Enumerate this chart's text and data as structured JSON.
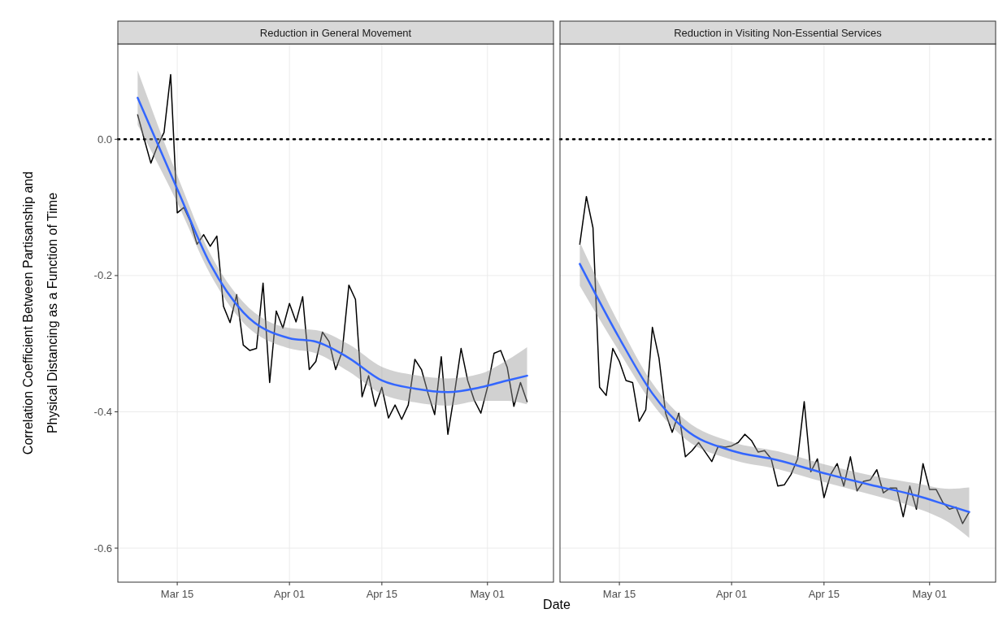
{
  "chart_data": [
    {
      "type": "line",
      "title": "Reduction in General Movement",
      "xlabel": "Date",
      "ylabel": "Correlation Coefficient Between Partisanship and\nPhysical Distancing as a Function of Time",
      "x": [
        "--03-09",
        "--03-10",
        "--03-11",
        "--03-12",
        "--03-13",
        "--03-14",
        "--03-15",
        "--03-16",
        "--03-17",
        "--03-18",
        "--03-19",
        "--03-20",
        "--03-21",
        "--03-22",
        "--03-23",
        "--03-24",
        "--03-25",
        "--03-26",
        "--03-27",
        "--03-28",
        "--03-29",
        "--03-30",
        "--03-31",
        "--04-01",
        "--04-02",
        "--04-03",
        "--04-04",
        "--04-05",
        "--04-06",
        "--04-07",
        "--04-08",
        "--04-09",
        "--04-10",
        "--04-11",
        "--04-12",
        "--04-13",
        "--04-14",
        "--04-15",
        "--04-16",
        "--04-17",
        "--04-18",
        "--04-19",
        "--04-20",
        "--04-21",
        "--04-22",
        "--04-23",
        "--04-24",
        "--04-25",
        "--04-26",
        "--04-27",
        "--04-28",
        "--04-29",
        "--04-30",
        "--05-01",
        "--05-02",
        "--05-03",
        "--05-04",
        "--05-05",
        "--05-06",
        "--05-07"
      ],
      "series": [
        {
          "color": "#000000",
          "values": [
            0.036,
            0.0,
            -0.035,
            -0.01,
            0.01,
            0.095,
            -0.108,
            -0.1,
            -0.121,
            -0.154,
            -0.14,
            -0.157,
            -0.142,
            -0.245,
            -0.269,
            -0.228,
            -0.302,
            -0.31,
            -0.307,
            -0.211,
            -0.357,
            -0.252,
            -0.277,
            -0.241,
            -0.268,
            -0.231,
            -0.338,
            -0.326,
            -0.283,
            -0.297,
            -0.338,
            -0.311,
            -0.214,
            -0.235,
            -0.378,
            -0.347,
            -0.392,
            -0.364,
            -0.409,
            -0.39,
            -0.411,
            -0.39,
            -0.323,
            -0.338,
            -0.373,
            -0.404,
            -0.319,
            -0.433,
            -0.373,
            -0.307,
            -0.354,
            -0.383,
            -0.402,
            -0.364,
            -0.314,
            -0.31,
            -0.335,
            -0.392,
            -0.357,
            -0.385
          ]
        },
        {
          "color": "#3366ff",
          "x": [
            "--03-09",
            "--03-15",
            "--03-20",
            "--03-25",
            "--04-01",
            "--04-05",
            "--04-10",
            "--04-15",
            "--04-20",
            "--04-25",
            "--04-30",
            "--05-04",
            "--05-07"
          ],
          "values": [
            0.061,
            -0.073,
            -0.183,
            -0.254,
            -0.292,
            -0.297,
            -0.321,
            -0.354,
            -0.366,
            -0.371,
            -0.364,
            -0.354,
            -0.347
          ],
          "lower": [
            0.021,
            -0.093,
            -0.198,
            -0.269,
            -0.307,
            -0.314,
            -0.341,
            -0.374,
            -0.386,
            -0.391,
            -0.384,
            -0.384,
            -0.389
          ],
          "upper": [
            0.101,
            -0.053,
            -0.168,
            -0.239,
            -0.277,
            -0.28,
            -0.301,
            -0.334,
            -0.346,
            -0.351,
            -0.344,
            -0.324,
            -0.305
          ]
        }
      ],
      "xlim": [
        "--03-06",
        "--05-11"
      ],
      "ylim": [
        -0.65,
        0.14
      ],
      "xticks": [
        {
          "value": "--03-15",
          "label": "Mar 15"
        },
        {
          "value": "--04-01",
          "label": "Apr 01"
        },
        {
          "value": "--04-15",
          "label": "Apr 15"
        },
        {
          "value": "--05-01",
          "label": "May 01"
        }
      ],
      "yticks": [
        {
          "value": 0,
          "label": "0.0"
        },
        -0.2,
        -0.4,
        -0.6
      ],
      "grid": true,
      "ref_lines": [
        {
          "axis": "y",
          "value": 0,
          "color": "#000000",
          "line_style": "dotted"
        }
      ]
    },
    {
      "type": "line",
      "title": "Reduction in Visiting Non-Essential Services",
      "x": [
        "--03-09",
        "--03-10",
        "--03-11",
        "--03-12",
        "--03-13",
        "--03-14",
        "--03-15",
        "--03-16",
        "--03-17",
        "--03-18",
        "--03-19",
        "--03-20",
        "--03-21",
        "--03-22",
        "--03-23",
        "--03-24",
        "--03-25",
        "--03-26",
        "--03-27",
        "--03-28",
        "--03-29",
        "--03-30",
        "--03-31",
        "--04-01",
        "--04-02",
        "--04-03",
        "--04-04",
        "--04-05",
        "--04-06",
        "--04-07",
        "--04-08",
        "--04-09",
        "--04-10",
        "--04-11",
        "--04-12",
        "--04-13",
        "--04-14",
        "--04-15",
        "--04-16",
        "--04-17",
        "--04-18",
        "--04-19",
        "--04-20",
        "--04-21",
        "--04-22",
        "--04-23",
        "--04-24",
        "--04-25",
        "--04-26",
        "--04-27",
        "--04-28",
        "--04-29",
        "--04-30",
        "--05-01",
        "--05-02",
        "--05-03",
        "--05-04",
        "--05-05",
        "--05-06",
        "--05-07"
      ],
      "series": [
        {
          "color": "#000000",
          "values": [
            -0.154,
            -0.084,
            -0.13,
            -0.364,
            -0.376,
            -0.307,
            -0.326,
            -0.354,
            -0.357,
            -0.414,
            -0.397,
            -0.276,
            -0.321,
            -0.402,
            -0.43,
            -0.402,
            -0.466,
            -0.457,
            -0.445,
            -0.459,
            -0.473,
            -0.45,
            -0.452,
            -0.45,
            -0.445,
            -0.433,
            -0.442,
            -0.459,
            -0.457,
            -0.469,
            -0.509,
            -0.507,
            -0.492,
            -0.469,
            -0.385,
            -0.488,
            -0.469,
            -0.526,
            -0.492,
            -0.476,
            -0.509,
            -0.466,
            -0.516,
            -0.502,
            -0.5,
            -0.485,
            -0.519,
            -0.512,
            -0.512,
            -0.554,
            -0.509,
            -0.543,
            -0.476,
            -0.514,
            -0.514,
            -0.533,
            -0.543,
            -0.54,
            -0.564,
            -0.547
          ]
        },
        {
          "color": "#3366ff",
          "x": [
            "--03-09",
            "--03-15",
            "--03-20",
            "--03-25",
            "--04-01",
            "--04-08",
            "--04-15",
            "--04-22",
            "--04-29",
            "--05-04",
            "--05-07"
          ],
          "values": [
            -0.183,
            -0.292,
            -0.373,
            -0.426,
            -0.457,
            -0.471,
            -0.49,
            -0.507,
            -0.523,
            -0.538,
            -0.547
          ],
          "lower": [
            -0.215,
            -0.312,
            -0.388,
            -0.44,
            -0.47,
            -0.484,
            -0.503,
            -0.521,
            -0.541,
            -0.563,
            -0.585
          ],
          "upper": [
            -0.151,
            -0.272,
            -0.358,
            -0.412,
            -0.444,
            -0.458,
            -0.477,
            -0.493,
            -0.505,
            -0.513,
            -0.511
          ]
        }
      ],
      "xlim": [
        "--03-06",
        "--05-11"
      ],
      "ylim": [
        -0.65,
        0.14
      ],
      "xticks": [
        {
          "value": "--03-15",
          "label": "Mar 15"
        },
        {
          "value": "--04-01",
          "label": "Apr 01"
        },
        {
          "value": "--04-15",
          "label": "Apr 15"
        },
        {
          "value": "--05-01",
          "label": "May 01"
        }
      ],
      "yticks": [
        0,
        -0.2,
        -0.4,
        -0.6
      ],
      "tick_labels": "x",
      "grid": true,
      "ref_lines": [
        {
          "axis": "y",
          "value": 0,
          "color": "#000000",
          "line_style": "dotted"
        }
      ]
    }
  ]
}
